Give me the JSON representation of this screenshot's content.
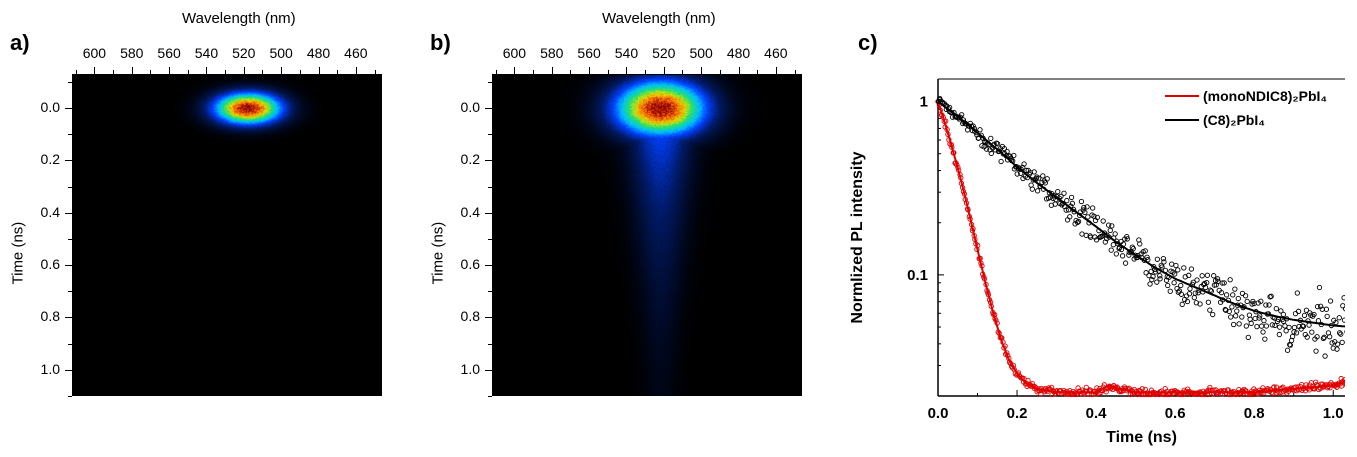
{
  "panels": {
    "a": {
      "letter": "a)"
    },
    "b": {
      "letter": "b)"
    },
    "c": {
      "letter": "c)"
    }
  },
  "chart_data": [
    {
      "type": "heatmap",
      "panel": "a)",
      "title": "",
      "xlabel": "Wavelength (nm)",
      "ylabel": "Time (ns)",
      "x_ticks": [
        "600",
        "580",
        "560",
        "540",
        "520",
        "500",
        "480",
        "460"
      ],
      "x_tick_values": [
        600,
        580,
        560,
        540,
        520,
        500,
        480,
        460
      ],
      "xlim": [
        612,
        446
      ],
      "y_ticks": [
        "0.0",
        "0.2",
        "0.4",
        "0.6",
        "0.8",
        "1.0"
      ],
      "y_tick_values": [
        0.0,
        0.2,
        0.4,
        0.6,
        0.8,
        1.0
      ],
      "ylim": [
        -0.13,
        1.1
      ],
      "peak": {
        "wavelength": 518,
        "time": 0.0
      },
      "spread": {
        "wavelength_sigma": 12,
        "time_sigma": 0.04,
        "tail_decay_ns": 0.04,
        "tail_intensity": 0.0
      },
      "colormap": [
        "#000000",
        "#001a66",
        "#0040ff",
        "#00c0ff",
        "#20e070",
        "#e0e000",
        "#ff6000",
        "#8a0000"
      ]
    },
    {
      "type": "heatmap",
      "panel": "b)",
      "title": "",
      "xlabel": "Wavelength (nm)",
      "ylabel": "Time (ns)",
      "x_ticks": [
        "600",
        "580",
        "560",
        "540",
        "520",
        "500",
        "480",
        "460"
      ],
      "x_tick_values": [
        600,
        580,
        560,
        540,
        520,
        500,
        480,
        460
      ],
      "xlim": [
        612,
        446
      ],
      "y_ticks": [
        "0.0",
        "0.2",
        "0.4",
        "0.6",
        "0.8",
        "1.0"
      ],
      "y_tick_values": [
        0.0,
        0.2,
        0.4,
        0.6,
        0.8,
        1.0
      ],
      "ylim": [
        -0.13,
        1.1
      ],
      "peak": {
        "wavelength": 522,
        "time": 0.0
      },
      "spread": {
        "wavelength_sigma": 16,
        "time_sigma": 0.07,
        "tail_decay_ns": 0.45,
        "tail_intensity": 0.35
      },
      "colormap": [
        "#000000",
        "#001a66",
        "#0040ff",
        "#00c0ff",
        "#20e070",
        "#e0e000",
        "#ff6000",
        "#8a0000"
      ]
    },
    {
      "type": "scatter",
      "panel": "c)",
      "title": "",
      "xlabel": "Time (ns)",
      "ylabel": "Normlized PL intensity",
      "xlim": [
        0.0,
        1.05
      ],
      "ylim": [
        0.02,
        1.35
      ],
      "yscale": "log",
      "x_ticks": [
        "0.0",
        "0.2",
        "0.4",
        "0.6",
        "0.8",
        "1.0"
      ],
      "x_tick_values": [
        0.0,
        0.2,
        0.4,
        0.6,
        0.8,
        1.0
      ],
      "y_ticks": [
        "0.1",
        "1"
      ],
      "y_tick_values": [
        0.1,
        1
      ],
      "legend_position": "top-right",
      "series": [
        {
          "name": "(monoNDIC8)₂PbI₄",
          "color": "#e00000",
          "marker": "open-circle",
          "fit": "line",
          "x": [
            0.0,
            0.02,
            0.04,
            0.06,
            0.08,
            0.1,
            0.12,
            0.14,
            0.16,
            0.18,
            0.2,
            0.22,
            0.25,
            0.3,
            0.35,
            0.4,
            0.43,
            0.46,
            0.5,
            0.6,
            0.7,
            0.8,
            0.9,
            1.0,
            1.05
          ],
          "y": [
            1.0,
            0.72,
            0.5,
            0.34,
            0.22,
            0.14,
            0.09,
            0.06,
            0.042,
            0.032,
            0.027,
            0.024,
            0.022,
            0.021,
            0.021,
            0.021,
            0.023,
            0.022,
            0.021,
            0.021,
            0.021,
            0.021,
            0.022,
            0.023,
            0.025
          ]
        },
        {
          "name": "(C8)₂PbI₄",
          "color": "#000000",
          "marker": "open-circle",
          "fit": "line",
          "x": [
            0.0,
            0.05,
            0.1,
            0.15,
            0.2,
            0.25,
            0.3,
            0.35,
            0.4,
            0.45,
            0.5,
            0.55,
            0.6,
            0.65,
            0.7,
            0.75,
            0.8,
            0.85,
            0.9,
            0.95,
            1.0,
            1.05
          ],
          "y": [
            1.0,
            0.82,
            0.66,
            0.53,
            0.42,
            0.34,
            0.28,
            0.23,
            0.19,
            0.155,
            0.13,
            0.11,
            0.095,
            0.085,
            0.076,
            0.068,
            0.062,
            0.058,
            0.055,
            0.053,
            0.051,
            0.05
          ]
        }
      ]
    }
  ]
}
